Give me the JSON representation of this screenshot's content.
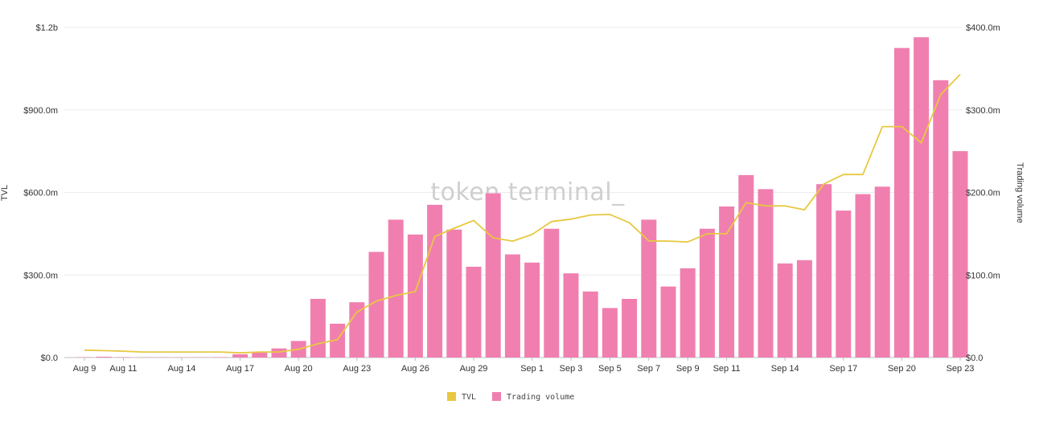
{
  "chart_data": {
    "type": "bar+line",
    "watermark": "token terminal_",
    "ylabel_left": "TVL",
    "ylabel_right": "Trading volume",
    "left_axis": {
      "ticks": [
        "$0.0",
        "$300.0m",
        "$600.0m",
        "$900.0m",
        "$1.2b"
      ],
      "ylim": [
        0,
        1200
      ]
    },
    "right_axis": {
      "ticks": [
        "$0.0",
        "$100.0m",
        "$200.0m",
        "$300.0m",
        "$400.0m"
      ],
      "ylim": [
        0,
        400
      ]
    },
    "x_tick_labels": [
      {
        "index": 0,
        "label": "Aug 9"
      },
      {
        "index": 2,
        "label": "Aug 11"
      },
      {
        "index": 5,
        "label": "Aug 14"
      },
      {
        "index": 8,
        "label": "Aug 17"
      },
      {
        "index": 11,
        "label": "Aug 20"
      },
      {
        "index": 14,
        "label": "Aug 23"
      },
      {
        "index": 17,
        "label": "Aug 26"
      },
      {
        "index": 20,
        "label": "Aug 29"
      },
      {
        "index": 23,
        "label": "Sep 1"
      },
      {
        "index": 25,
        "label": "Sep 3"
      },
      {
        "index": 27,
        "label": "Sep 5"
      },
      {
        "index": 29,
        "label": "Sep 7"
      },
      {
        "index": 31,
        "label": "Sep 9"
      },
      {
        "index": 33,
        "label": "Sep 11"
      },
      {
        "index": 36,
        "label": "Sep 14"
      },
      {
        "index": 39,
        "label": "Sep 17"
      },
      {
        "index": 42,
        "label": "Sep 20"
      },
      {
        "index": 45,
        "label": "Sep 23"
      }
    ],
    "dates": [
      "Aug 9",
      "Aug 10",
      "Aug 11",
      "Aug 12",
      "Aug 13",
      "Aug 14",
      "Aug 15",
      "Aug 16",
      "Aug 17",
      "Aug 18",
      "Aug 19",
      "Aug 20",
      "Aug 21",
      "Aug 22",
      "Aug 23",
      "Aug 24",
      "Aug 25",
      "Aug 26",
      "Aug 27",
      "Aug 28",
      "Aug 29",
      "Aug 30",
      "Aug 31",
      "Sep 1",
      "Sep 2",
      "Sep 3",
      "Sep 4",
      "Sep 5",
      "Sep 6",
      "Sep 7",
      "Sep 8",
      "Sep 9",
      "Sep 10",
      "Sep 11",
      "Sep 12",
      "Sep 13",
      "Sep 14",
      "Sep 15",
      "Sep 16",
      "Sep 17",
      "Sep 18",
      "Sep 19",
      "Sep 20",
      "Sep 21",
      "Sep 22",
      "Sep 23"
    ],
    "series": [
      {
        "name": "Trading volume",
        "type": "bar",
        "axis": "right",
        "unit": "$m",
        "color": "#f07fb0",
        "values": [
          0.5,
          1,
          0.5,
          0.3,
          0.3,
          0.3,
          0.3,
          0.5,
          4,
          6,
          11,
          20,
          71,
          41,
          67,
          128,
          167,
          149,
          185,
          155,
          110,
          199,
          125,
          115,
          156,
          102,
          80,
          60,
          71,
          167,
          86,
          108,
          156,
          183,
          221,
          204,
          114,
          118,
          210,
          178,
          198,
          207,
          375,
          388,
          336,
          250
        ]
      },
      {
        "name": "TVL",
        "type": "line",
        "axis": "left",
        "unit": "$m",
        "color": "#e8c840",
        "values": [
          27,
          25,
          23,
          20,
          20,
          20,
          20,
          20,
          17,
          20,
          20,
          30,
          50,
          65,
          165,
          205,
          225,
          240,
          440,
          470,
          498,
          435,
          423,
          447,
          494,
          503,
          518,
          520,
          490,
          424,
          423,
          420,
          450,
          450,
          563,
          551,
          551,
          537,
          631,
          665,
          665,
          839,
          839,
          780,
          956,
          1029
        ]
      }
    ],
    "legend": [
      {
        "label": "TVL",
        "color": "#e8c840"
      },
      {
        "label": "Trading volume",
        "color": "#f07fb0"
      }
    ],
    "legend_position": "bottom-center",
    "grid": true
  }
}
